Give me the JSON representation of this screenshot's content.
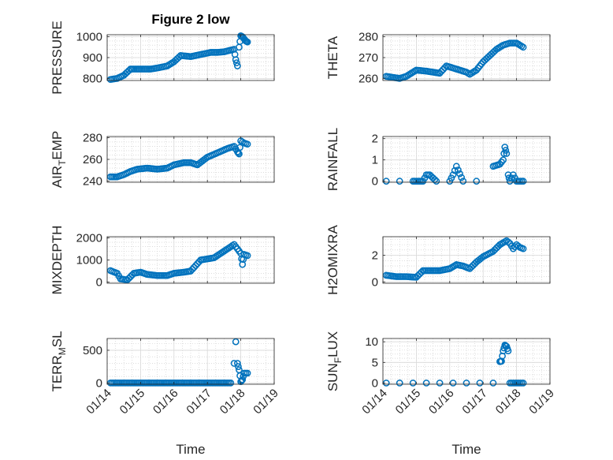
{
  "figure": {
    "title": "Figure 2 low",
    "xlabel": "Time",
    "xticks": [
      "01/14",
      "01/15",
      "01/16",
      "01/17",
      "01/18",
      "01/19"
    ],
    "xlim": [
      14.0,
      19.0
    ],
    "marker": "circle-open",
    "color": "#0072BD"
  },
  "chart_data": [
    {
      "type": "scatter",
      "ylabel": "PRESSURE",
      "ylim": [
        790,
        1010
      ],
      "yticks": [
        "800",
        "900",
        "1000"
      ],
      "ytick_values": [
        800,
        900,
        1000
      ],
      "x": [
        14.1,
        14.3,
        14.5,
        14.7,
        15.0,
        15.3,
        15.5,
        15.8,
        16.0,
        16.2,
        16.5,
        16.8,
        17.1,
        17.3,
        17.5,
        17.8,
        17.85,
        17.9,
        17.95,
        18.0,
        18.05,
        18.1,
        18.15,
        18.2
      ],
      "y": [
        795,
        800,
        815,
        845,
        845,
        845,
        850,
        860,
        880,
        910,
        905,
        915,
        925,
        925,
        928,
        940,
        890,
        860,
        950,
        1005,
        1000,
        990,
        980,
        975
      ]
    },
    {
      "type": "scatter",
      "ylabel": "THETA",
      "ylim": [
        259,
        281
      ],
      "yticks": [
        "260",
        "270",
        "280"
      ],
      "ytick_values": [
        260,
        270,
        280
      ],
      "x": [
        14.1,
        14.3,
        14.5,
        14.7,
        15.0,
        15.3,
        15.5,
        15.7,
        15.9,
        16.1,
        16.3,
        16.5,
        16.6,
        16.8,
        17.0,
        17.2,
        17.4,
        17.6,
        17.8,
        18.0,
        18.1,
        18.2
      ],
      "y": [
        261,
        260.5,
        260,
        261,
        264,
        263.5,
        263,
        262.5,
        266,
        265,
        264,
        263,
        262,
        264,
        268,
        271,
        274,
        276,
        277,
        277,
        276,
        275
      ]
    },
    {
      "type": "scatter",
      "ylabel": "AIR_TEMP",
      "ylabel_parts": {
        "base": "AIR",
        "sub": "T",
        "rest": "EMP"
      },
      "ylim": [
        239,
        281
      ],
      "yticks": [
        "240",
        "260",
        "280"
      ],
      "ytick_values": [
        240,
        260,
        280
      ],
      "x": [
        14.1,
        14.3,
        14.5,
        14.7,
        14.9,
        15.2,
        15.5,
        15.8,
        16.0,
        16.3,
        16.5,
        16.7,
        17.0,
        17.3,
        17.6,
        17.8,
        17.9,
        17.95,
        18.0,
        18.1,
        18.2
      ],
      "y": [
        244,
        244,
        246,
        249,
        251,
        252,
        251,
        252,
        255,
        257,
        257,
        255,
        262,
        266,
        270,
        272,
        267,
        265,
        277,
        275,
        274
      ]
    },
    {
      "type": "scatter",
      "ylabel": "RAINFALL",
      "ylim": [
        -0.05,
        2.1
      ],
      "yticks": [
        "0",
        "1",
        "2"
      ],
      "ytick_values": [
        0,
        1,
        2
      ],
      "x": [
        14.1,
        14.5,
        14.9,
        15.2,
        15.3,
        15.4,
        15.6,
        16.0,
        16.1,
        16.2,
        16.4,
        16.8,
        17.3,
        17.5,
        17.6,
        17.65,
        17.7,
        17.75,
        17.8,
        17.9,
        18.0,
        18.2
      ],
      "y": [
        0,
        0,
        0,
        0,
        0.3,
        0.3,
        0,
        0,
        0.3,
        0.7,
        0,
        0,
        0.7,
        0.8,
        1.0,
        1.6,
        1.3,
        0.3,
        0,
        0.3,
        0,
        0
      ]
    },
    {
      "type": "scatter",
      "ylabel": "MIXDEPTH",
      "ylim": [
        -50,
        2050
      ],
      "yticks": [
        "0",
        "1000",
        "2000"
      ],
      "ytick_values": [
        0,
        1000,
        2000
      ],
      "x": [
        14.1,
        14.3,
        14.4,
        14.6,
        14.8,
        15.0,
        15.2,
        15.5,
        15.8,
        16.0,
        16.3,
        16.5,
        16.8,
        17.0,
        17.2,
        17.4,
        17.6,
        17.8,
        17.9,
        18.0,
        18.05,
        18.1,
        18.2
      ],
      "y": [
        520,
        400,
        150,
        100,
        400,
        450,
        350,
        300,
        300,
        400,
        450,
        500,
        1000,
        1050,
        1100,
        1300,
        1500,
        1700,
        1500,
        1300,
        800,
        1250,
        1200
      ]
    },
    {
      "type": "scatter",
      "ylabel": "H2OMIXRA",
      "ylim": [
        -0.1,
        3.4
      ],
      "yticks": [
        "0",
        "2"
      ],
      "ytick_values": [
        0,
        2
      ],
      "x": [
        14.1,
        14.4,
        14.7,
        15.0,
        15.2,
        15.4,
        15.7,
        16.0,
        16.2,
        16.4,
        16.6,
        16.8,
        17.0,
        17.3,
        17.5,
        17.7,
        17.8,
        17.9,
        18.0,
        18.1,
        18.2
      ],
      "y": [
        0.5,
        0.4,
        0.4,
        0.35,
        0.85,
        0.85,
        0.85,
        1.0,
        1.3,
        1.2,
        1.0,
        1.5,
        1.9,
        2.3,
        2.8,
        3.1,
        2.9,
        2.5,
        2.8,
        2.6,
        2.5
      ]
    },
    {
      "type": "scatter",
      "ylabel": "TERR_MSL",
      "ylabel_parts": {
        "base": "TERR",
        "sub": "M",
        "rest": "SL"
      },
      "ylim": [
        -20,
        680
      ],
      "yticks": [
        "0",
        "500"
      ],
      "ytick_values": [
        0,
        500
      ],
      "x": [
        14.1,
        14.4,
        14.7,
        15.0,
        15.3,
        15.6,
        15.9,
        16.2,
        16.5,
        16.8,
        17.1,
        17.4,
        17.7,
        17.8,
        17.85,
        17.9,
        17.95,
        18.0,
        18.05,
        18.1,
        18.2
      ],
      "y": [
        0,
        0,
        0,
        0,
        0,
        0,
        0,
        0,
        0,
        0,
        0,
        0,
        0,
        300,
        630,
        300,
        200,
        20,
        50,
        150,
        150
      ]
    },
    {
      "type": "scatter",
      "ylabel": "SUN_FLUX",
      "ylabel_parts": {
        "base": "SUN",
        "sub": "F",
        "rest": "LUX"
      },
      "ylim": [
        -0.3,
        10.8
      ],
      "yticks": [
        "0",
        "5",
        "10"
      ],
      "ytick_values": [
        0,
        5,
        10
      ],
      "x": [
        14.1,
        14.5,
        14.9,
        15.3,
        15.7,
        16.1,
        16.5,
        16.9,
        17.3,
        17.5,
        17.55,
        17.6,
        17.65,
        17.7,
        17.75,
        17.8,
        18.0,
        18.2
      ],
      "y": [
        0,
        0,
        0,
        0,
        0,
        0,
        0,
        0,
        0,
        5.2,
        5.3,
        7.8,
        9.2,
        8.9,
        7.8,
        0,
        0,
        0
      ]
    }
  ]
}
